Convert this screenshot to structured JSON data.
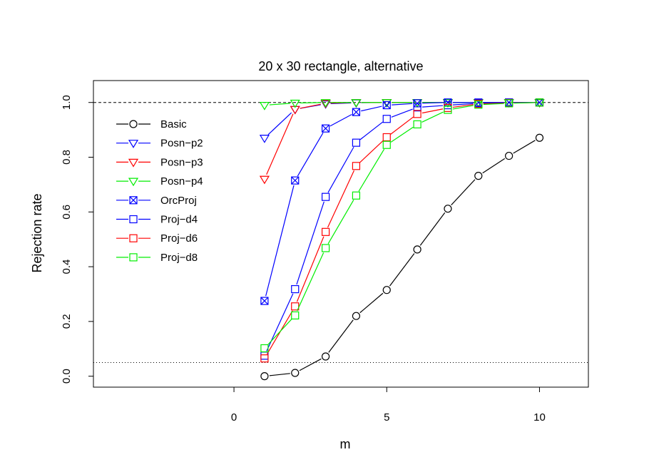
{
  "chart_data": {
    "type": "line",
    "title": "20 x 30 rectangle, alternative",
    "xlabel": "m",
    "ylabel": "Rejection rate",
    "xlim": [
      -4.6,
      11.6
    ],
    "ylim": [
      -0.04,
      1.08
    ],
    "x_ticks": [
      0,
      5,
      10
    ],
    "x_tick_labels": [
      "0",
      "5",
      "10"
    ],
    "y_ticks": [
      0.0,
      0.2,
      0.4,
      0.6,
      0.8,
      1.0
    ],
    "y_tick_labels": [
      "0.0",
      "0.2",
      "0.4",
      "0.6",
      "0.8",
      "1.0"
    ],
    "reference_lines": [
      {
        "y": 1.0,
        "style": "dashed"
      },
      {
        "y": 0.05,
        "style": "dotted"
      }
    ],
    "legend_position": "top-left",
    "x": [
      1,
      2,
      3,
      4,
      5,
      6,
      7,
      8,
      9,
      10
    ],
    "series": [
      {
        "name": "Basic",
        "color": "#000000",
        "marker": "circle",
        "values": [
          0.0,
          0.012,
          0.072,
          0.22,
          0.315,
          0.463,
          0.612,
          0.732,
          0.805,
          0.871
        ]
      },
      {
        "name": "Posn−p2",
        "color": "#0000ff",
        "marker": "triangle-down",
        "values": [
          0.87,
          0.975,
          0.995,
          0.999,
          1.0,
          1.0,
          1.0,
          1.0,
          1.0,
          1.0
        ]
      },
      {
        "name": "Posn−p3",
        "color": "#ff0000",
        "marker": "triangle-down",
        "values": [
          0.72,
          0.975,
          0.997,
          1.0,
          1.0,
          1.0,
          1.0,
          1.0,
          1.0,
          1.0
        ]
      },
      {
        "name": "Posn−p4",
        "color": "#00ee00",
        "marker": "triangle-down",
        "values": [
          0.99,
          0.998,
          1.0,
          1.0,
          1.0,
          1.0,
          1.0,
          1.0,
          1.0,
          1.0
        ]
      },
      {
        "name": "OrcProj",
        "color": "#0000ff",
        "marker": "square-x",
        "values": [
          0.275,
          0.715,
          0.905,
          0.965,
          0.99,
          0.997,
          1.0,
          1.0,
          1.0,
          1.0
        ]
      },
      {
        "name": "Proj−d4",
        "color": "#0000ff",
        "marker": "square",
        "values": [
          0.075,
          0.318,
          0.655,
          0.853,
          0.94,
          0.982,
          0.99,
          0.997,
          1.0,
          1.0
        ]
      },
      {
        "name": "Proj−d6",
        "color": "#ff0000",
        "marker": "square",
        "values": [
          0.065,
          0.255,
          0.527,
          0.768,
          0.873,
          0.958,
          0.98,
          0.995,
          0.998,
          1.0
        ]
      },
      {
        "name": "Proj−d8",
        "color": "#00ee00",
        "marker": "square",
        "values": [
          0.102,
          0.222,
          0.468,
          0.66,
          0.845,
          0.92,
          0.973,
          0.992,
          0.997,
          1.0
        ]
      }
    ]
  }
}
